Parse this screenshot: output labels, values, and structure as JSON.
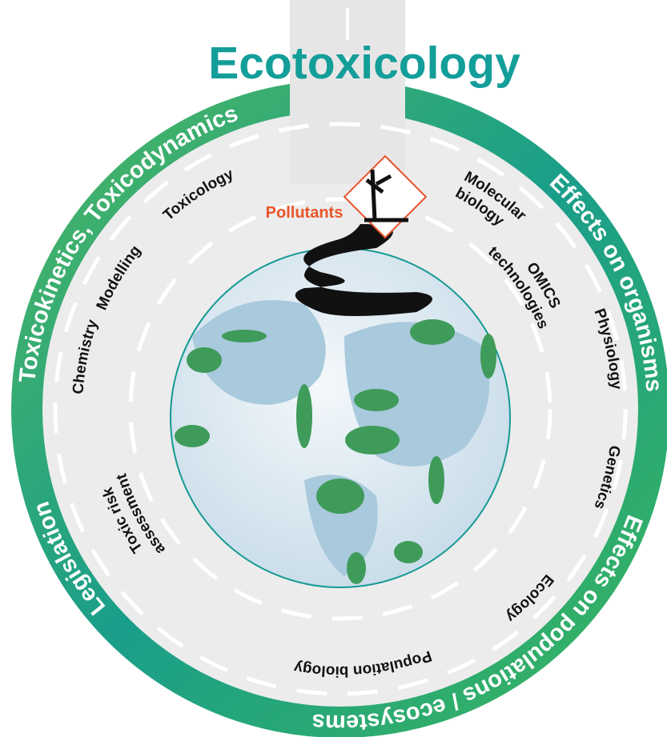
{
  "title": "Ecotoxicology",
  "outer_ring": [
    "Toxicokinetics, Toxicodynamics",
    "Effects on organisms",
    "Effects on populations / ecosystems",
    "Legislation"
  ],
  "inner_labels": {
    "toxicology": "Toxicology",
    "modelling": "Modelling",
    "chemistry": "Chemistry",
    "molecular_biology": [
      "Molecular",
      "biology"
    ],
    "omics": [
      "OMICS",
      "technologies"
    ],
    "physiology": "Physiology",
    "genetics": "Genetics",
    "ecology": "Ecology",
    "population_biology": "Population biology",
    "toxic_risk": [
      "Toxic risk",
      "assessment"
    ]
  },
  "pollutant_label": "Pollutants"
}
